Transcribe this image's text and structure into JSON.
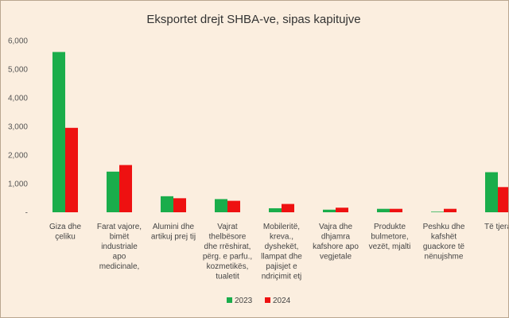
{
  "chart_data": {
    "type": "bar",
    "title": "Eksportet drejt SHBA-ve, sipas kapitujve",
    "categories": [
      [
        "Giza dhe",
        "çeliku"
      ],
      [
        "Farat vajore,",
        "bimët",
        "industriale",
        "apo",
        "medicinale,"
      ],
      [
        "Alumini dhe",
        "artikuj prej tij"
      ],
      [
        "Vajrat",
        "thelbësore",
        "dhe rrëshirat,",
        "përg. e parfu.,",
        "kozmetikës,",
        "tualetit"
      ],
      [
        "Mobileritë,",
        "kreva.,",
        "dyshekët,",
        "llampat dhe",
        "pajisjet e",
        "ndriçimit etj"
      ],
      [
        "Vajra dhe",
        "dhjamra",
        "kafshore apo",
        "vegjetale"
      ],
      [
        "Produkte",
        "bulmetore,",
        "vezët, mjalti"
      ],
      [
        "Peshku dhe",
        "kafshët",
        "guackore të",
        "nënujshme"
      ],
      [
        "Të tjera"
      ]
    ],
    "series": [
      {
        "name": "2023",
        "color": "#1aad4b",
        "values": [
          5600,
          1420,
          560,
          460,
          140,
          90,
          120,
          20,
          1400
        ]
      },
      {
        "name": "2024",
        "color": "#ee1111",
        "values": [
          2950,
          1650,
          490,
          400,
          290,
          160,
          120,
          120,
          880
        ]
      }
    ],
    "yticks": [
      "-",
      "1,000",
      "2,000",
      "3,000",
      "4,000",
      "5,000",
      "6,000"
    ],
    "ylim": [
      0,
      6000
    ],
    "legend": "bottom-center",
    "grid": false
  }
}
